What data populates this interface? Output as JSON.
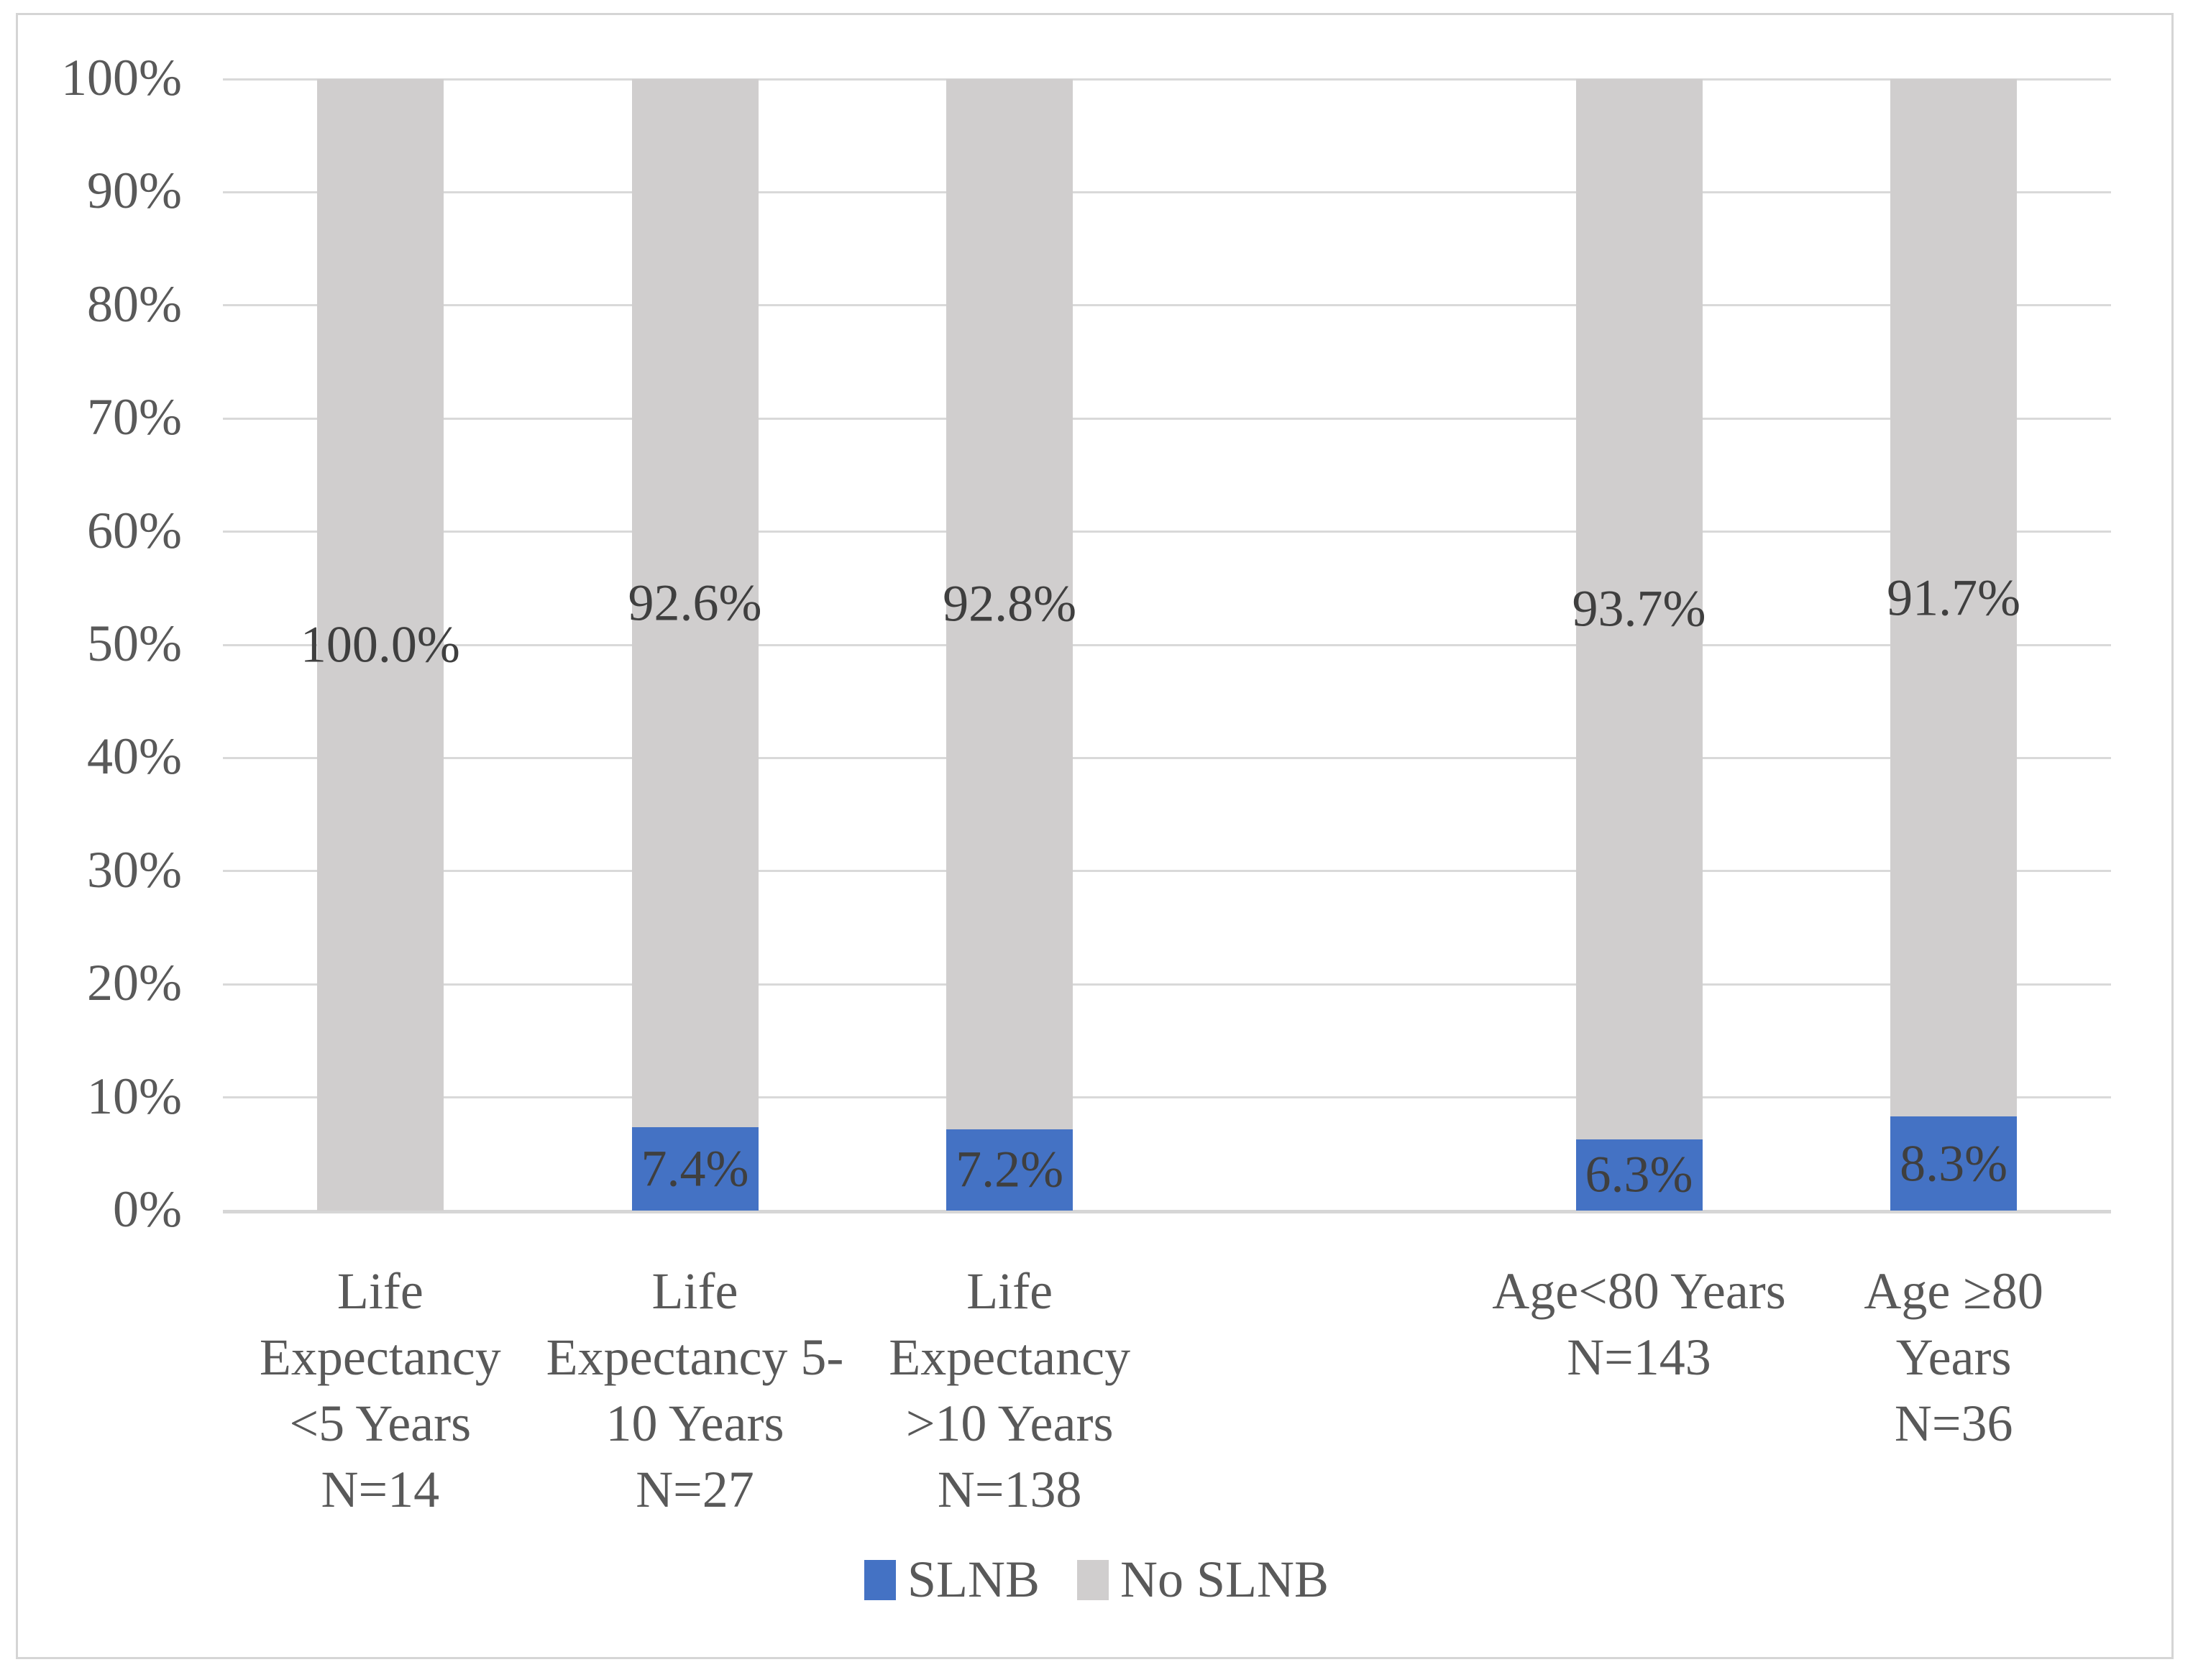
{
  "chart_data": {
    "type": "bar",
    "subtype": "stacked-100-percent-column",
    "title": "",
    "xlabel": "",
    "ylabel": "",
    "ylim": [
      0,
      100
    ],
    "ytick_step": 10,
    "yticks": [
      "0%",
      "10%",
      "20%",
      "30%",
      "40%",
      "50%",
      "60%",
      "70%",
      "80%",
      "90%",
      "100%"
    ],
    "grid": true,
    "legend_position": "bottom",
    "categories": [
      "Life\nExpectancy\n<5 Years\nN=14",
      "Life\nExpectancy 5-\n10 Years\nN=27",
      "Life\nExpectancy\n>10 Years\nN=138",
      "",
      "Age<80 Years\nN=143",
      "Age ≥80\nYears\nN=36"
    ],
    "series": [
      {
        "name": "SLNB",
        "color": "#4472C4",
        "values": [
          0.0,
          7.4,
          7.2,
          null,
          6.3,
          8.3
        ],
        "labels": [
          "",
          "7.4%",
          "7.2%",
          "",
          "6.3%",
          "8.3%"
        ]
      },
      {
        "name": "No SLNB",
        "color": "#D0CECE",
        "values": [
          100.0,
          92.6,
          92.8,
          null,
          93.7,
          91.7
        ],
        "labels": [
          "100.0%",
          "92.6%",
          "92.8%",
          "",
          "93.7%",
          "91.7%"
        ]
      }
    ]
  }
}
